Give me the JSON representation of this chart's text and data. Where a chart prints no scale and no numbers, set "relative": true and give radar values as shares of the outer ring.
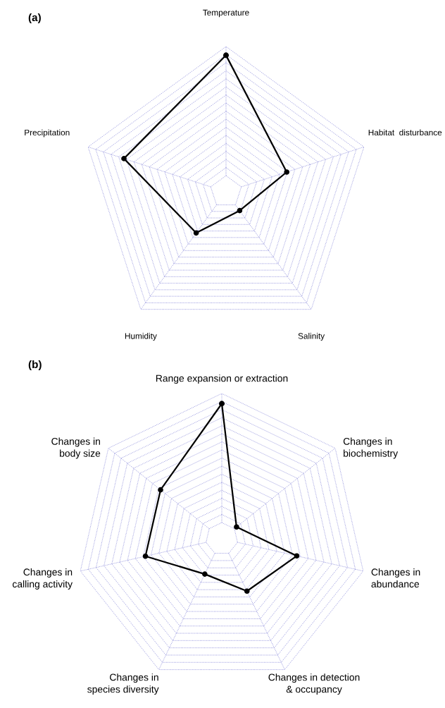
{
  "chart_data": [
    {
      "type": "radar",
      "title": "(a)",
      "relative": true,
      "grid": true,
      "marker": "circle",
      "line_style": "solid",
      "categories": [
        "Temperature",
        "Habitat  disturbance",
        "Salinity",
        "Humidity",
        "Precipitation"
      ],
      "series": [
        {
          "color": "#000000",
          "values": [
            0.94,
            0.44,
            0.16,
            0.35,
            0.74
          ]
        }
      ]
    },
    {
      "type": "radar",
      "title": "(b)",
      "relative": true,
      "grid": true,
      "marker": "circle",
      "line_style": "solid",
      "categories": [
        "Range expansion or extraction",
        "Changes in\nbiochemistry",
        "Changes in\nabundance",
        "Changes in detection\n& occupancy",
        "Changes in\nspecies diversity",
        "Changes in\ncalling activity",
        "Changes in\nbody size"
      ],
      "series": [
        {
          "color": "#000000",
          "values": [
            0.93,
            0.13,
            0.53,
            0.4,
            0.27,
            0.54,
            0.54
          ]
        }
      ]
    }
  ]
}
